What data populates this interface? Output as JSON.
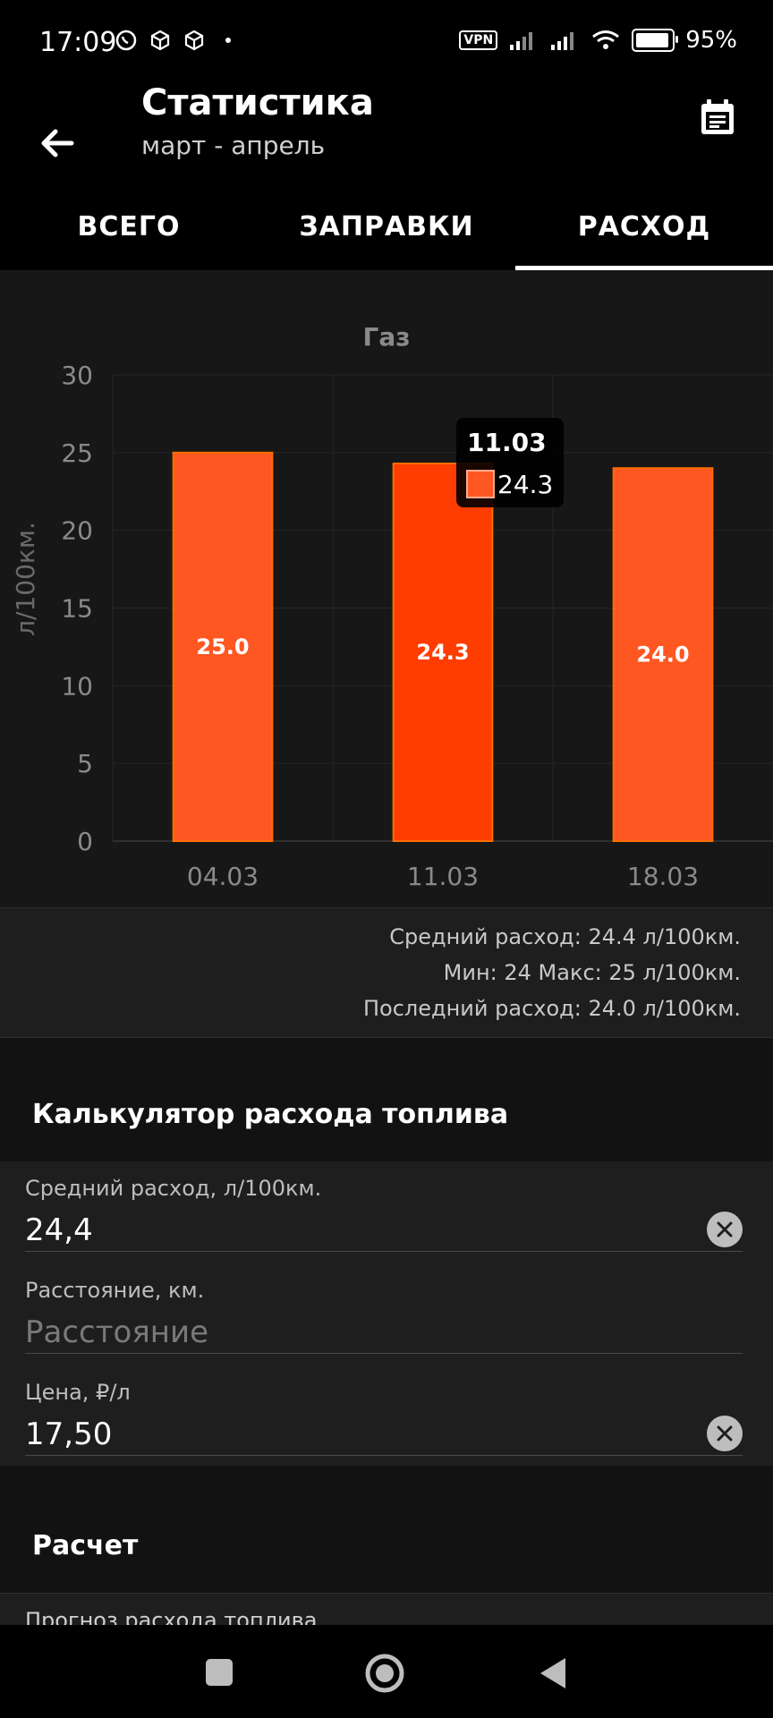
{
  "status_bar": {
    "time": "17:09",
    "vpn": "VPN",
    "battery": "95%"
  },
  "app_bar": {
    "title": "Статистика",
    "subtitle": "март - апрель"
  },
  "tabs": [
    {
      "label": "ВСЕГО",
      "active": false
    },
    {
      "label": "ЗАПРАВКИ",
      "active": false
    },
    {
      "label": "РАСХОД",
      "active": true
    }
  ],
  "chart_data": {
    "type": "bar",
    "title": "Газ",
    "ylabel": "л/100км.",
    "xlabel": "",
    "categories": [
      "04.03",
      "11.03",
      "18.03"
    ],
    "values": [
      25.0,
      24.3,
      24.0
    ],
    "value_labels": [
      "25.0",
      "24.3",
      "24.0"
    ],
    "ylim": [
      0,
      30
    ],
    "yticks": [
      0,
      5,
      10,
      15,
      20,
      25,
      30
    ],
    "grid": true,
    "bar_color": "#ff5722",
    "highlight_color": "#ff3d00",
    "tooltip": {
      "title": "11.03",
      "value": "24.3"
    }
  },
  "summary": {
    "avg": "Средний расход: 24.4 л/100км.",
    "minmax": "Мин: 24 Макс: 25 л/100км.",
    "last": "Последний расход: 24.0 л/100км."
  },
  "calculator": {
    "title": "Калькулятор расхода топлива",
    "avg_label": "Средний расход, л/100км.",
    "avg_value": "24,4",
    "distance_label": "Расстояние, км.",
    "distance_placeholder": "Расстояние",
    "price_label": "Цена, ₽/л",
    "price_value": "17,50"
  },
  "calculation": {
    "title": "Расчет",
    "forecast_label": "Прогноз расхода топлива"
  }
}
